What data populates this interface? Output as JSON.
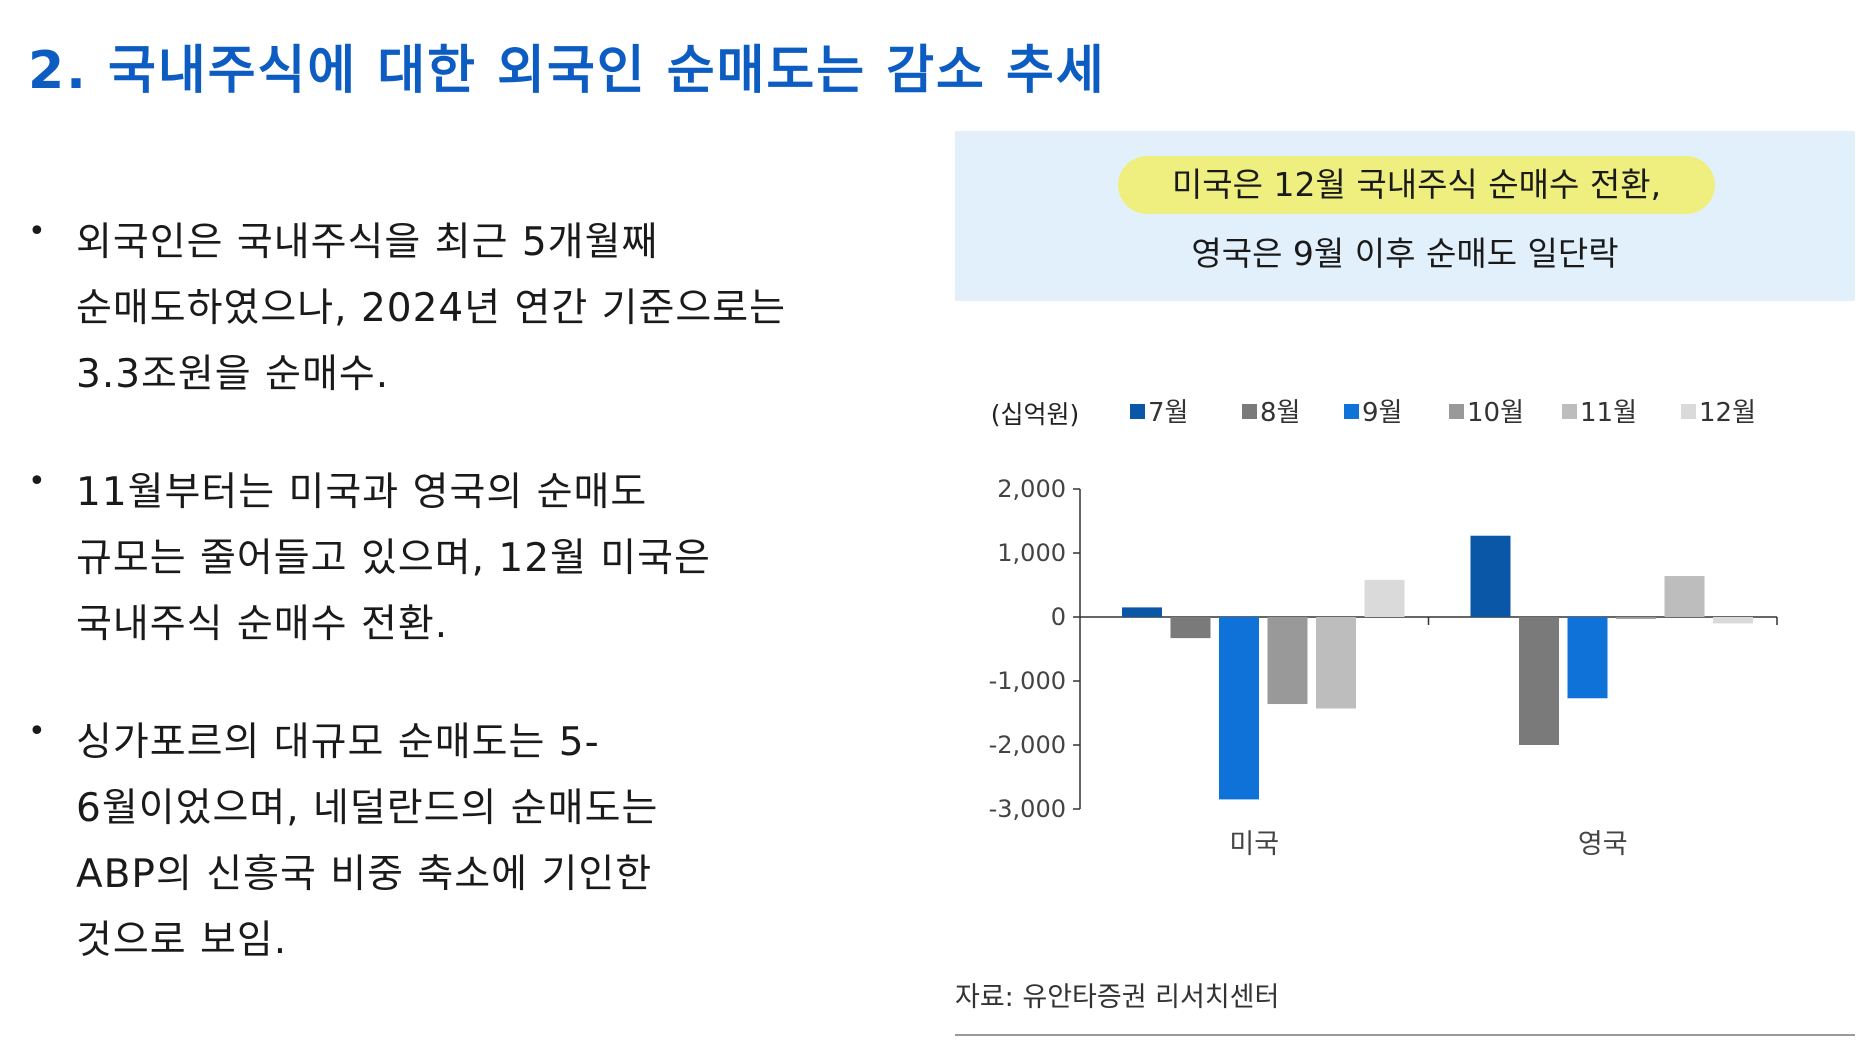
{
  "title": "2.  국내주식에  대한  외국인  순매도는  감소  추세",
  "bullets": [
    {
      "lines": [
        "외국인은  국내주식을  최근  5개월째",
        "순매도하였으나, 2024년  연간  기준으로는",
        "3.3조원을  순매수."
      ]
    },
    {
      "lines": [
        "11월부터는  미국과  영국의  순매도",
        "규모는  줄어들고  있으며, 12월  미국은",
        "국내주식  순매수  전환."
      ]
    },
    {
      "lines": [
        "싱가포르의  대규모  순매도는  5-",
        "6월이었으며,  네덜란드의  순매도는",
        "ABP의  신흥국  비중  축소에  기인한",
        "것으로  보임."
      ]
    }
  ],
  "callout": {
    "line1": "미국은  12월  국내주식  순매수  전환,",
    "line2": "영국은  9월  이후  순매도  일단락"
  },
  "chart_data": {
    "type": "bar",
    "unit_label": "(십억원)",
    "categories": [
      "미국",
      "영국"
    ],
    "series": [
      {
        "name": "7월",
        "color": "#0a57a8",
        "values": [
          150,
          1270
        ]
      },
      {
        "name": "8월",
        "color": "#7a7a7a",
        "values": [
          -330,
          -2000
        ]
      },
      {
        "name": "9월",
        "color": "#0f72d9",
        "values": [
          -2850,
          -1270
        ]
      },
      {
        "name": "10월",
        "color": "#999999",
        "values": [
          -1360,
          -30
        ]
      },
      {
        "name": "11월",
        "color": "#bdbdbd",
        "values": [
          -1430,
          640
        ]
      },
      {
        "name": "12월",
        "color": "#dadada",
        "values": [
          580,
          -100
        ]
      }
    ],
    "ylim": [
      -3000,
      2000
    ],
    "yticks": [
      2000,
      1000,
      0,
      -1000,
      -2000,
      -3000
    ],
    "ytick_labels": [
      "2,000",
      "1,000",
      "0",
      "-1,000",
      "-2,000",
      "-3,000"
    ],
    "legend_position": "top"
  },
  "source": "자료:  유안타증권  리서치센터"
}
